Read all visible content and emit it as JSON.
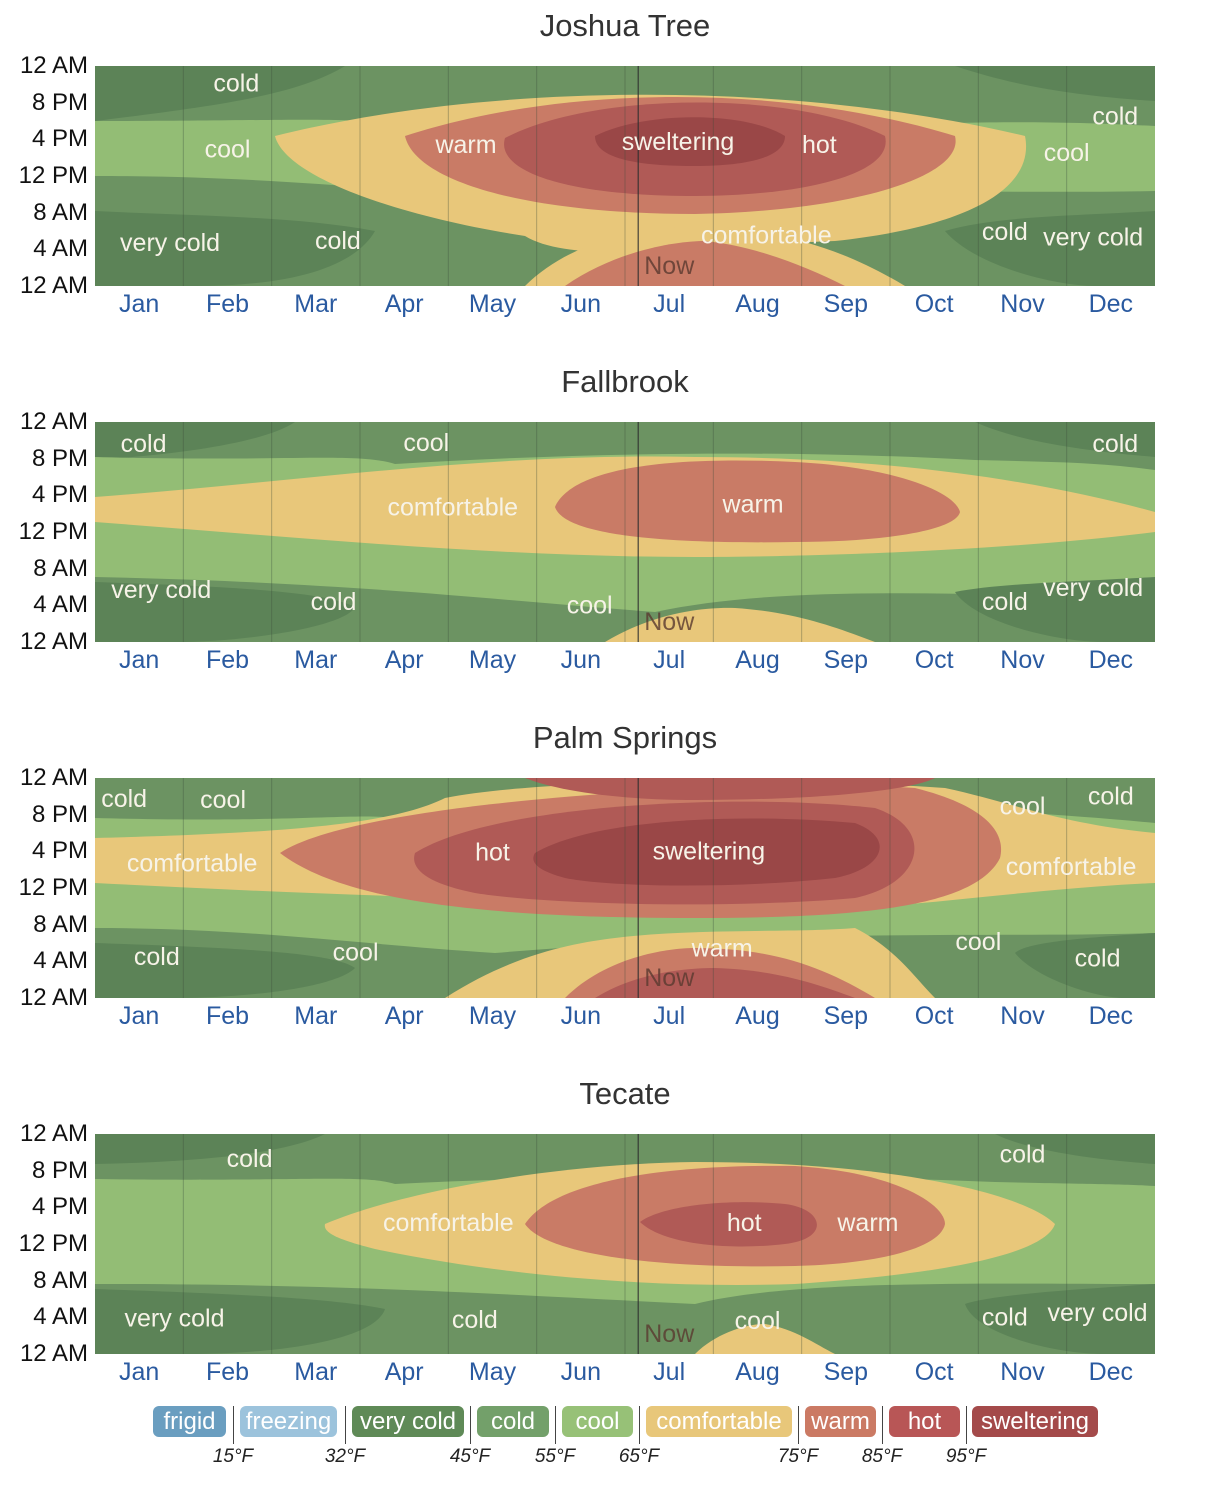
{
  "chart_data": [
    {
      "type": "heatmap",
      "title": "Joshua Tree",
      "xlabel": "",
      "ylabel": "",
      "x_ticks": [
        "Jan",
        "Feb",
        "Mar",
        "Apr",
        "May",
        "Jun",
        "Jul",
        "Aug",
        "Sep",
        "Oct",
        "Nov",
        "Dec"
      ],
      "y_ticks": [
        "12 AM",
        "8 PM",
        "4 PM",
        "12 PM",
        "8 AM",
        "4 AM",
        "12 AM"
      ],
      "y_range_hours": [
        0,
        24
      ],
      "x_range_months": [
        0,
        12
      ],
      "now_month": 6.15,
      "now_label": "Now",
      "region_labels": [
        {
          "text": "cold",
          "month": 1.6,
          "hour": 22.2
        },
        {
          "text": "cool",
          "month": 1.5,
          "hour": 15.0
        },
        {
          "text": "warm",
          "month": 4.2,
          "hour": 15.5
        },
        {
          "text": "sweltering",
          "month": 6.6,
          "hour": 15.8
        },
        {
          "text": "hot",
          "month": 8.2,
          "hour": 15.5
        },
        {
          "text": "cold",
          "month": 11.55,
          "hour": 18.6
        },
        {
          "text": "cool",
          "month": 11.0,
          "hour": 14.6
        },
        {
          "text": "very cold",
          "month": 0.85,
          "hour": 4.8
        },
        {
          "text": "cold",
          "month": 2.75,
          "hour": 5.0
        },
        {
          "text": "comfortable",
          "month": 7.6,
          "hour": 5.6
        },
        {
          "text": "cold",
          "month": 10.3,
          "hour": 6.0
        },
        {
          "text": "very cold",
          "month": 11.3,
          "hour": 5.4
        }
      ]
    },
    {
      "type": "heatmap",
      "title": "Fallbrook",
      "xlabel": "",
      "ylabel": "",
      "x_ticks": [
        "Jan",
        "Feb",
        "Mar",
        "Apr",
        "May",
        "Jun",
        "Jul",
        "Aug",
        "Sep",
        "Oct",
        "Nov",
        "Dec"
      ],
      "y_ticks": [
        "12 AM",
        "8 PM",
        "4 PM",
        "12 PM",
        "8 AM",
        "4 AM",
        "12 AM"
      ],
      "y_range_hours": [
        0,
        24
      ],
      "x_range_months": [
        0,
        12
      ],
      "now_month": 6.15,
      "now_label": "Now",
      "region_labels": [
        {
          "text": "cold",
          "month": 0.55,
          "hour": 21.7
        },
        {
          "text": "cool",
          "month": 3.75,
          "hour": 21.8
        },
        {
          "text": "cold",
          "month": 11.55,
          "hour": 21.7
        },
        {
          "text": "comfortable",
          "month": 4.05,
          "hour": 14.8
        },
        {
          "text": "warm",
          "month": 7.45,
          "hour": 15.1
        },
        {
          "text": "very cold",
          "month": 0.75,
          "hour": 5.8
        },
        {
          "text": "cold",
          "month": 2.7,
          "hour": 4.5
        },
        {
          "text": "cool",
          "month": 5.6,
          "hour": 4.1
        },
        {
          "text": "cold",
          "month": 10.3,
          "hour": 4.5
        },
        {
          "text": "very cold",
          "month": 11.3,
          "hour": 6.0
        }
      ]
    },
    {
      "type": "heatmap",
      "title": "Palm Springs",
      "xlabel": "",
      "ylabel": "",
      "x_ticks": [
        "Jan",
        "Feb",
        "Mar",
        "Apr",
        "May",
        "Jun",
        "Jul",
        "Aug",
        "Sep",
        "Oct",
        "Nov",
        "Dec"
      ],
      "y_ticks": [
        "12 AM",
        "8 PM",
        "4 PM",
        "12 PM",
        "8 AM",
        "4 AM",
        "12 AM"
      ],
      "y_range_hours": [
        0,
        24
      ],
      "x_range_months": [
        0,
        12
      ],
      "now_month": 6.15,
      "now_label": "Now",
      "region_labels": [
        {
          "text": "cold",
          "month": 0.33,
          "hour": 21.8
        },
        {
          "text": "cool",
          "month": 1.45,
          "hour": 21.7
        },
        {
          "text": "cool",
          "month": 10.5,
          "hour": 21.0
        },
        {
          "text": "cold",
          "month": 11.5,
          "hour": 22.1
        },
        {
          "text": "comfortable",
          "month": 1.1,
          "hour": 14.8
        },
        {
          "text": "hot",
          "month": 4.5,
          "hour": 16.0
        },
        {
          "text": "sweltering",
          "month": 6.95,
          "hour": 16.1
        },
        {
          "text": "comfortable",
          "month": 11.05,
          "hour": 14.4
        },
        {
          "text": "cold",
          "month": 0.7,
          "hour": 4.6
        },
        {
          "text": "cool",
          "month": 2.95,
          "hour": 5.1
        },
        {
          "text": "warm",
          "month": 7.1,
          "hour": 5.5
        },
        {
          "text": "cool",
          "month": 10.0,
          "hour": 6.2
        },
        {
          "text": "cold",
          "month": 11.35,
          "hour": 4.4
        }
      ]
    },
    {
      "type": "heatmap",
      "title": "Tecate",
      "xlabel": "",
      "ylabel": "",
      "x_ticks": [
        "Jan",
        "Feb",
        "Mar",
        "Apr",
        "May",
        "Jun",
        "Jul",
        "Aug",
        "Sep",
        "Oct",
        "Nov",
        "Dec"
      ],
      "y_ticks": [
        "12 AM",
        "8 PM",
        "4 PM",
        "12 PM",
        "8 AM",
        "4 AM",
        "12 AM"
      ],
      "y_range_hours": [
        0,
        24
      ],
      "x_range_months": [
        0,
        12
      ],
      "now_month": 6.15,
      "now_label": "Now",
      "region_labels": [
        {
          "text": "cold",
          "month": 1.75,
          "hour": 21.4
        },
        {
          "text": "cold",
          "month": 10.5,
          "hour": 21.9
        },
        {
          "text": "comfortable",
          "month": 4.0,
          "hour": 14.4
        },
        {
          "text": "hot",
          "month": 7.35,
          "hour": 14.4
        },
        {
          "text": "warm",
          "month": 8.75,
          "hour": 14.4
        },
        {
          "text": "very cold",
          "month": 0.9,
          "hour": 4.0
        },
        {
          "text": "cold",
          "month": 4.3,
          "hour": 3.8
        },
        {
          "text": "cool",
          "month": 7.5,
          "hour": 3.7
        },
        {
          "text": "cold",
          "month": 10.3,
          "hour": 4.1
        },
        {
          "text": "very cold",
          "month": 11.35,
          "hour": 4.6
        }
      ]
    }
  ],
  "legend": {
    "categories": [
      {
        "label": "frigid",
        "color": "#6a9ec0"
      },
      {
        "label": "freezing",
        "color": "#9cc3dc"
      },
      {
        "label": "very cold",
        "color": "#5f8a57"
      },
      {
        "label": "cold",
        "color": "#73a06a"
      },
      {
        "label": "cool",
        "color": "#97c177"
      },
      {
        "label": "comfortable",
        "color": "#e8c77a"
      },
      {
        "label": "warm",
        "color": "#cb7a64"
      },
      {
        "label": "hot",
        "color": "#b85656"
      },
      {
        "label": "sweltering",
        "color": "#a44a4a"
      }
    ],
    "ticks": [
      "15°F",
      "32°F",
      "45°F",
      "55°F",
      "65°F",
      "75°F",
      "85°F",
      "95°F"
    ]
  },
  "colors": {
    "very_cold": "#5c8357",
    "cold": "#6c9362",
    "cool": "#93bd75",
    "comfortable": "#e8c77a",
    "warm": "#c97b66",
    "hot": "#b05a56",
    "sweltering": "#9a4747",
    "month_tick": "#2a5aa0"
  }
}
